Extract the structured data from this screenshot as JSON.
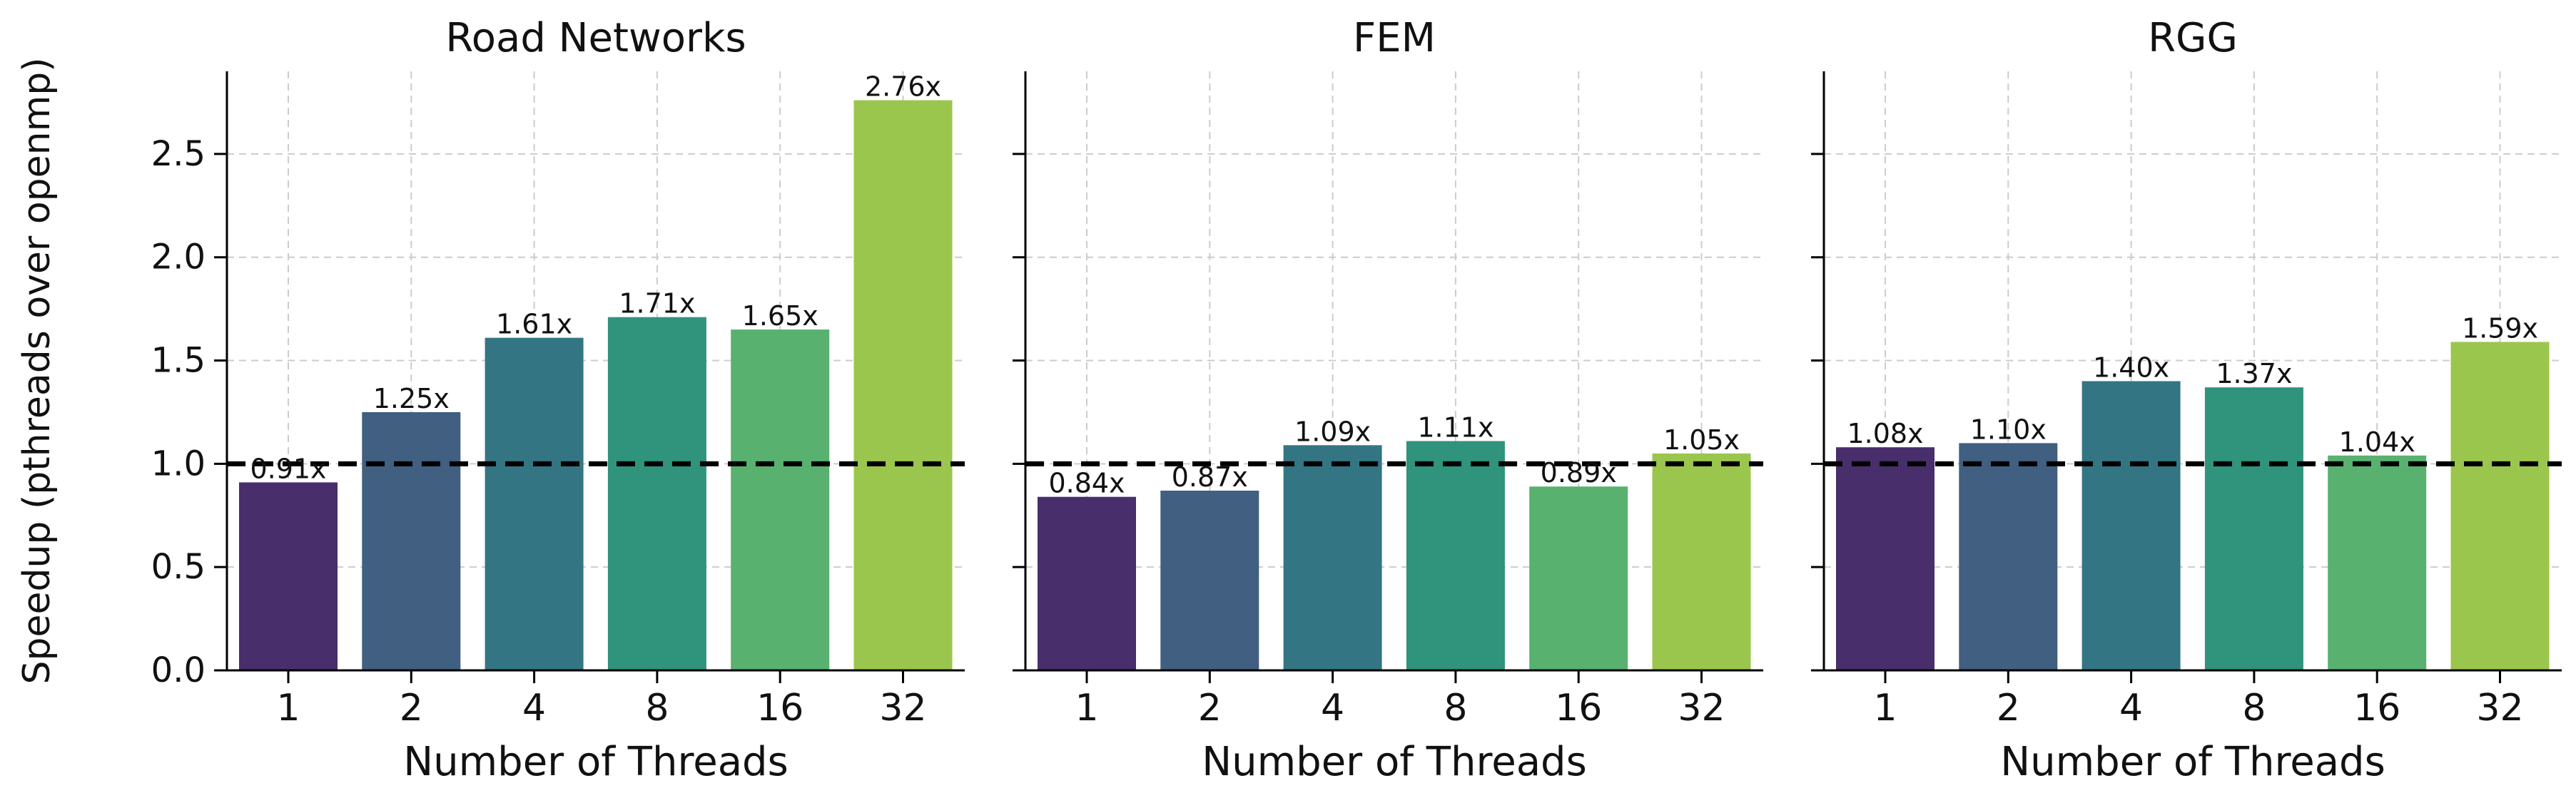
{
  "ylabel": "Speedup (pthreads over openmp)",
  "baseline": 1.0,
  "colors": [
    "#482e6b",
    "#405f81",
    "#347583",
    "#30937c",
    "#59b16f",
    "#9bc64d"
  ],
  "chart_data": [
    {
      "type": "bar",
      "title": "Road Networks",
      "xlabel": "Number of Threads",
      "categories": [
        "1",
        "2",
        "4",
        "8",
        "16",
        "32"
      ],
      "values": [
        0.91,
        1.25,
        1.61,
        1.71,
        1.65,
        2.76
      ],
      "labels": [
        "0.91x",
        "1.25x",
        "1.61x",
        "1.71x",
        "1.65x",
        "2.76x"
      ],
      "ylim": [
        0,
        2.9
      ],
      "yticks": [
        "0.0",
        "0.5",
        "1.0",
        "1.5",
        "2.0",
        "2.5"
      ],
      "show_ytick_labels": true,
      "grid": true
    },
    {
      "type": "bar",
      "title": "FEM",
      "xlabel": "Number of Threads",
      "categories": [
        "1",
        "2",
        "4",
        "8",
        "16",
        "32"
      ],
      "values": [
        0.84,
        0.87,
        1.09,
        1.11,
        0.89,
        1.05
      ],
      "labels": [
        "0.84x",
        "0.87x",
        "1.09x",
        "1.11x",
        "0.89x",
        "1.05x"
      ],
      "ylim": [
        0,
        2.9
      ],
      "yticks": [
        "0.0",
        "0.5",
        "1.0",
        "1.5",
        "2.0",
        "2.5"
      ],
      "show_ytick_labels": false,
      "grid": true
    },
    {
      "type": "bar",
      "title": "RGG",
      "xlabel": "Number of Threads",
      "categories": [
        "1",
        "2",
        "4",
        "8",
        "16",
        "32"
      ],
      "values": [
        1.08,
        1.1,
        1.4,
        1.37,
        1.04,
        1.59
      ],
      "labels": [
        "1.08x",
        "1.10x",
        "1.40x",
        "1.37x",
        "1.04x",
        "1.59x"
      ],
      "ylim": [
        0,
        2.9
      ],
      "yticks": [
        "0.0",
        "0.5",
        "1.0",
        "1.5",
        "2.0",
        "2.5"
      ],
      "show_ytick_labels": false,
      "grid": true
    }
  ]
}
